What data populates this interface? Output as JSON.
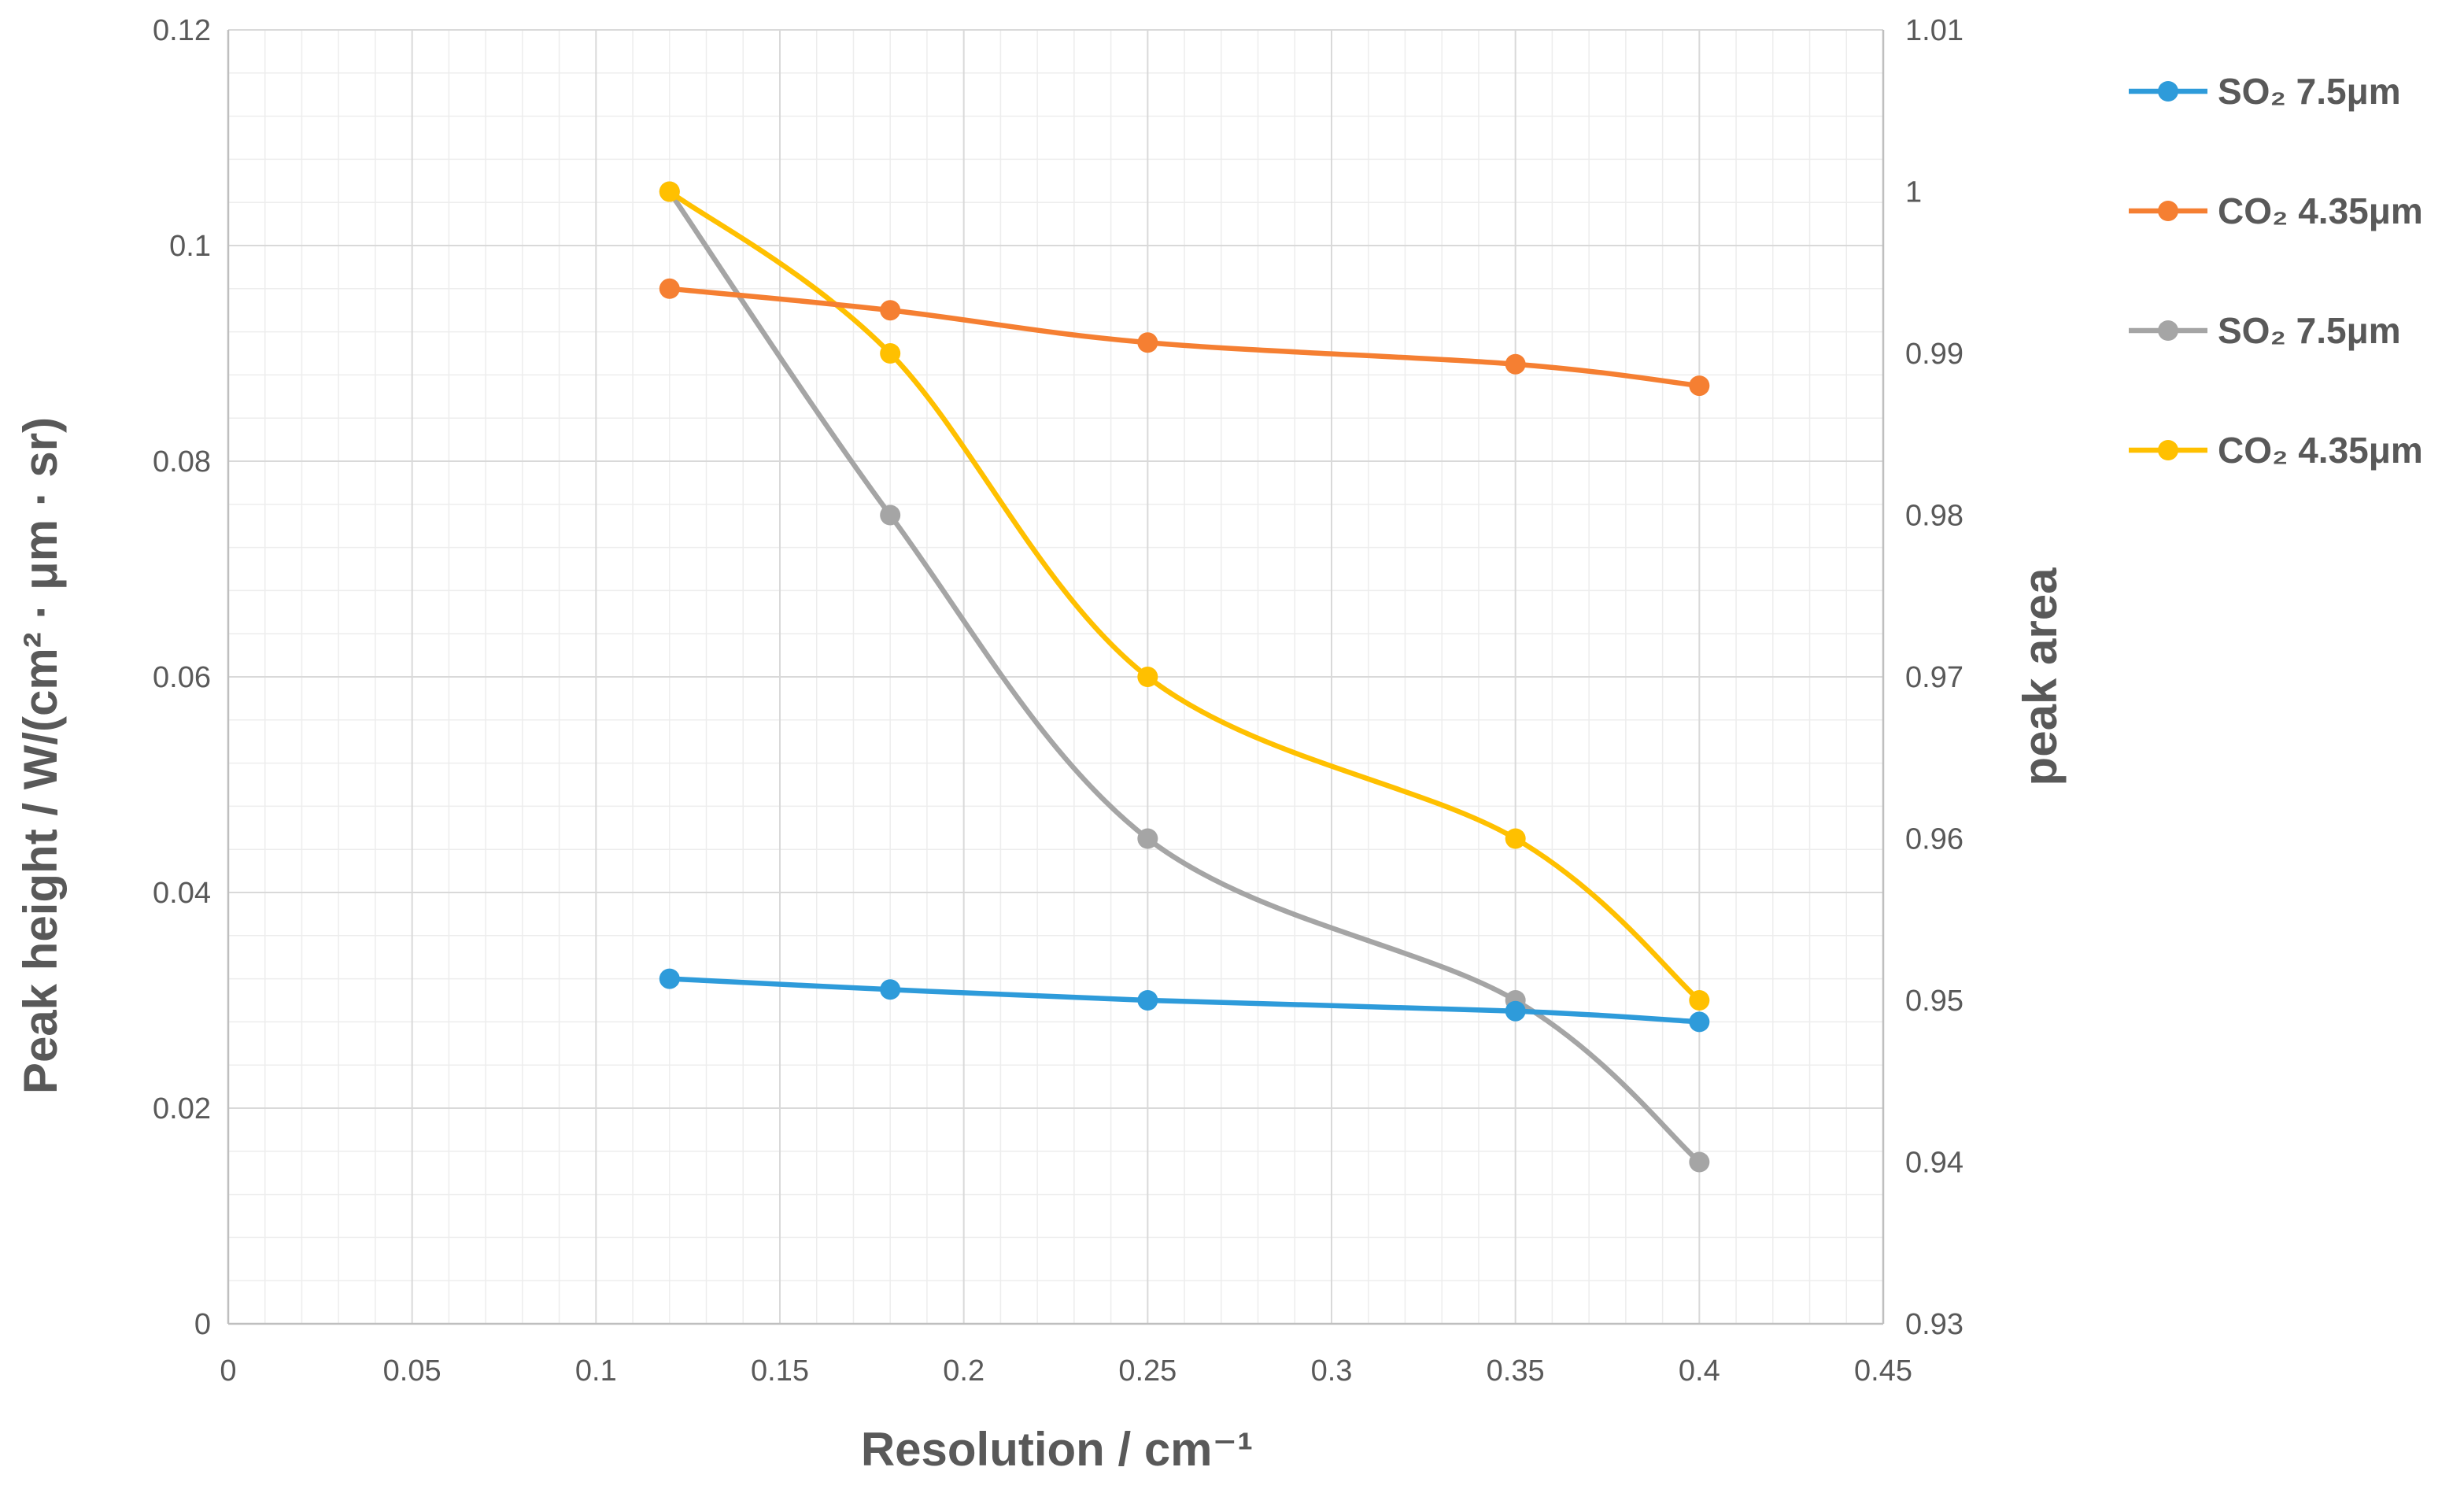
{
  "chart_data": {
    "type": "line",
    "title": "",
    "xlabel": "Resolution / cm⁻¹",
    "ylabel": "Peak height / W/(cm² · μm · sr)",
    "y2label": "peak area",
    "xlim": [
      0,
      0.45
    ],
    "ylim": [
      0,
      0.12
    ],
    "y2lim": [
      0.93,
      1.01
    ],
    "grid": true,
    "minor_grid": true,
    "legend_position": "right",
    "x_ticks": [
      0,
      0.05,
      0.1,
      0.15,
      0.2,
      0.25,
      0.3,
      0.35,
      0.4,
      0.45
    ],
    "x_tick_labels": [
      "0",
      "0.05",
      "0.1",
      "0.15",
      "0.2",
      "0.25",
      "0.3",
      "0.35",
      "0.4",
      "0.45"
    ],
    "y_ticks": [
      0,
      0.02,
      0.04,
      0.06,
      0.08,
      0.1,
      0.12
    ],
    "y_tick_labels": [
      "0",
      "0.02",
      "0.04",
      "0.06",
      "0.08",
      "0.1",
      "0.12"
    ],
    "y2_ticks": [
      0.93,
      0.94,
      0.95,
      0.96,
      0.97,
      0.98,
      0.99,
      1,
      1.01
    ],
    "y2_tick_labels": [
      "0.93",
      "0.94",
      "0.95",
      "0.96",
      "0.97",
      "0.98",
      "0.99",
      "1",
      "1.01"
    ],
    "series": [
      {
        "name": "SO₂ 7.5μm",
        "color": "#2E9BDA",
        "axis": "left",
        "x": [
          0.12,
          0.18,
          0.25,
          0.35,
          0.4
        ],
        "values": [
          0.032,
          0.031,
          0.03,
          0.029,
          0.028
        ]
      },
      {
        "name": "CO₂ 4.35μm",
        "color": "#F57F32",
        "axis": "left",
        "x": [
          0.12,
          0.18,
          0.25,
          0.35,
          0.4
        ],
        "values": [
          0.096,
          0.094,
          0.091,
          0.089,
          0.087
        ]
      },
      {
        "name": "SO₂ 7.5μm",
        "color": "#A5A5A5",
        "axis": "right",
        "x": [
          0.12,
          0.18,
          0.25,
          0.35,
          0.4
        ],
        "values": [
          1.0,
          0.98,
          0.96,
          0.95,
          0.94
        ]
      },
      {
        "name": "CO₂ 4.35μm",
        "color": "#FFC000",
        "axis": "right",
        "x": [
          0.12,
          0.18,
          0.25,
          0.35,
          0.4
        ],
        "values": [
          1.0,
          0.99,
          0.97,
          0.96,
          0.95
        ]
      }
    ]
  }
}
